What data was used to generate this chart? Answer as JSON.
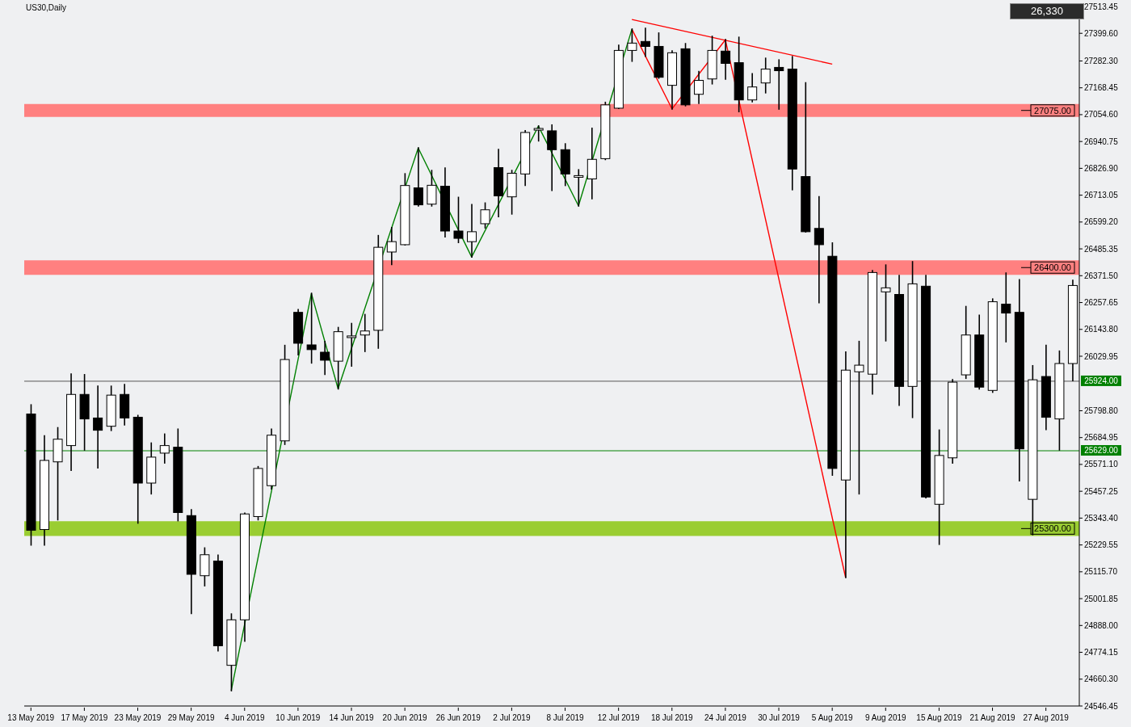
{
  "chart_data": {
    "type": "candlestick",
    "title": "US30,Daily",
    "annotations": [
      "26,330"
    ],
    "categories": [
      "13 May 2019",
      null,
      null,
      null,
      "17 May 2019",
      null,
      null,
      null,
      "23 May 2019",
      null,
      null,
      null,
      "29 May 2019",
      null,
      null,
      null,
      "4 Jun 2019",
      null,
      null,
      null,
      "10 Jun 2019",
      null,
      null,
      null,
      "14 Jun 2019",
      null,
      null,
      null,
      "20 Jun 2019",
      null,
      null,
      null,
      "26 Jun 2019",
      null,
      null,
      null,
      "2 Jul 2019",
      null,
      null,
      null,
      "8 Jul 2019",
      null,
      null,
      null,
      "12 Jul 2019",
      null,
      null,
      null,
      "18 Jul 2019",
      null,
      null,
      null,
      "24 Jul 2019",
      null,
      null,
      null,
      "30 Jul 2019",
      null,
      null,
      null,
      "5 Aug 2019",
      null,
      null,
      null,
      "9 Aug 2019",
      null,
      null,
      null,
      "15 Aug 2019",
      null,
      null,
      null,
      "21 Aug 2019",
      null,
      null,
      null,
      "27 Aug 2019",
      null,
      null
    ],
    "color": "#000000",
    "ohlc": [
      [
        25785,
        25823,
        25230,
        25292
      ],
      [
        25295,
        25692,
        25230,
        25588
      ],
      [
        25582,
        25726,
        25337,
        25678
      ],
      [
        25651,
        25954,
        25547,
        25868
      ],
      [
        25868,
        25951,
        25633,
        25764
      ],
      [
        25768,
        25902,
        25557,
        25716
      ],
      [
        25733,
        25902,
        25716,
        25865
      ],
      [
        25868,
        25909,
        25740,
        25768
      ],
      [
        25771,
        25778,
        25323,
        25492
      ],
      [
        25492,
        25661,
        25447,
        25602
      ],
      [
        25619,
        25699,
        25578,
        25651
      ],
      [
        25644,
        25720,
        25333,
        25367
      ],
      [
        25354,
        25378,
        24940,
        25105
      ],
      [
        25099,
        25216,
        25057,
        25188
      ],
      [
        25161,
        25185,
        24781,
        24802
      ],
      [
        24719,
        24936,
        24612,
        24912
      ],
      [
        24912,
        25364,
        24822,
        25361
      ],
      [
        25350,
        25561,
        25337,
        25554
      ],
      [
        25481,
        25720,
        25468,
        25695
      ],
      [
        25671,
        26075,
        25657,
        26016
      ],
      [
        26216,
        26227,
        26037,
        26085
      ],
      [
        26078,
        26296,
        26002,
        26058
      ],
      [
        26047,
        26092,
        25954,
        26013
      ],
      [
        26009,
        26151,
        25892,
        26134
      ],
      [
        26109,
        26168,
        25989,
        26116
      ],
      [
        26120,
        26206,
        26051,
        26137
      ],
      [
        26140,
        26541,
        26065,
        26492
      ],
      [
        26472,
        26575,
        26420,
        26516
      ],
      [
        26503,
        26803,
        26503,
        26754
      ],
      [
        26744,
        26913,
        26668,
        26672
      ],
      [
        26675,
        26817,
        26668,
        26755
      ],
      [
        26751,
        26827,
        26537,
        26561
      ],
      [
        26561,
        26703,
        26513,
        26530
      ],
      [
        26516,
        26672,
        26451,
        26558
      ],
      [
        26592,
        26679,
        26575,
        26651
      ],
      [
        26830,
        26906,
        26623,
        26710
      ],
      [
        26706,
        26817,
        26634,
        26806
      ],
      [
        26803,
        26986,
        26755,
        26979
      ],
      [
        26989,
        27006,
        26944,
        26996
      ],
      [
        26986,
        27010,
        26734,
        26906
      ],
      [
        26906,
        26930,
        26755,
        26803
      ],
      [
        26789,
        26820,
        26668,
        26796
      ],
      [
        26782,
        26996,
        26699,
        26865
      ],
      [
        26868,
        27106,
        26865,
        27096
      ],
      [
        27082,
        27348,
        27082,
        27327
      ],
      [
        27327,
        27417,
        27282,
        27358
      ],
      [
        27365,
        27420,
        27303,
        27344
      ],
      [
        27344,
        27400,
        27210,
        27213
      ],
      [
        27179,
        27324,
        27079,
        27317
      ],
      [
        27334,
        27355,
        27093,
        27096
      ],
      [
        27141,
        27237,
        27103,
        27200
      ],
      [
        27206,
        27386,
        27186,
        27327
      ],
      [
        27324,
        27372,
        27206,
        27272
      ],
      [
        27275,
        27382,
        27068,
        27117
      ],
      [
        27117,
        27227,
        27110,
        27172
      ],
      [
        27189,
        27293,
        27148,
        27248
      ],
      [
        27255,
        27286,
        27079,
        27241
      ],
      [
        27248,
        27300,
        26737,
        26824
      ],
      [
        26792,
        27189,
        26558,
        26558
      ],
      [
        26572,
        26706,
        26258,
        26503
      ],
      [
        26454,
        26510,
        25526,
        25554
      ],
      [
        25505,
        26047,
        25092,
        25971
      ],
      [
        25964,
        26092,
        25447,
        25992
      ],
      [
        25954,
        26392,
        25871,
        26385
      ],
      [
        26303,
        26416,
        26096,
        26320
      ],
      [
        26292,
        26372,
        25823,
        25902
      ],
      [
        25902,
        26430,
        25771,
        26337
      ],
      [
        26327,
        26372,
        25430,
        25433
      ],
      [
        25402,
        25716,
        25233,
        25609
      ],
      [
        25599,
        25930,
        25578,
        25920
      ],
      [
        25951,
        26240,
        25937,
        26120
      ],
      [
        26120,
        26203,
        25892,
        25899
      ],
      [
        25885,
        26272,
        25878,
        26261
      ],
      [
        26251,
        26382,
        26092,
        26213
      ],
      [
        26216,
        26354,
        25502,
        25637
      ],
      [
        25423,
        25989,
        25274,
        25930
      ],
      [
        25944,
        26075,
        25720,
        25771
      ],
      [
        25764,
        26051,
        25633,
        25999
      ],
      [
        25999,
        26351,
        25927,
        26330
      ]
    ],
    "series": [
      {
        "type": "line",
        "color": "#008000",
        "values": [
          null,
          null,
          null,
          null,
          null,
          null,
          null,
          null,
          null,
          null,
          null,
          null,
          null,
          null,
          null,
          24612,
          null,
          null,
          null,
          null,
          null,
          26296,
          null,
          25892,
          null,
          null,
          null,
          null,
          null,
          26913,
          null,
          null,
          null,
          26451,
          null,
          null,
          null,
          null,
          27006,
          null,
          null,
          26668,
          null,
          null,
          null,
          27417,
          null,
          null,
          null,
          null,
          null,
          null,
          null,
          null,
          null,
          null,
          null,
          null,
          null,
          null,
          null,
          null,
          null,
          null,
          null,
          null,
          null,
          null,
          null,
          null,
          null,
          null,
          null,
          null,
          null,
          null,
          null,
          null,
          null
        ]
      },
      {
        "type": "line",
        "color": "#ff0000",
        "values": [
          null,
          null,
          null,
          null,
          null,
          null,
          null,
          null,
          null,
          null,
          null,
          null,
          null,
          null,
          null,
          null,
          null,
          null,
          null,
          null,
          null,
          null,
          null,
          null,
          null,
          null,
          null,
          null,
          null,
          null,
          null,
          null,
          null,
          null,
          null,
          null,
          null,
          null,
          null,
          null,
          null,
          null,
          null,
          null,
          null,
          27417,
          null,
          null,
          27079,
          null,
          null,
          null,
          27372,
          null,
          null,
          null,
          null,
          null,
          null,
          null,
          null,
          25092,
          null,
          null,
          null,
          null,
          null,
          null,
          null,
          null,
          null,
          null,
          null,
          null,
          null,
          null,
          null,
          null,
          null
        ]
      },
      {
        "type": "line",
        "color": "#ff0000",
        "values": [
          null,
          null,
          null,
          null,
          null,
          null,
          null,
          null,
          null,
          null,
          null,
          null,
          null,
          null,
          null,
          null,
          null,
          null,
          null,
          null,
          null,
          null,
          null,
          null,
          null,
          null,
          null,
          null,
          null,
          null,
          null,
          null,
          null,
          null,
          null,
          null,
          null,
          null,
          null,
          null,
          null,
          null,
          null,
          null,
          null,
          27458,
          null,
          null,
          null,
          null,
          null,
          null,
          null,
          null,
          null,
          null,
          null,
          null,
          null,
          null,
          27269,
          null,
          null,
          null,
          null,
          null,
          null,
          null,
          null,
          null,
          null,
          null,
          null,
          null,
          null,
          null,
          null,
          null,
          null
        ]
      }
    ],
    "ylim": [
      24546.45,
      27513.45
    ],
    "yticks": [
      {
        "value": 24546.45,
        "label": "24546.45"
      },
      {
        "value": 24660.3,
        "label": "24660.30"
      },
      {
        "value": 24774.15,
        "label": "24774.15"
      },
      {
        "value": 24888,
        "label": "24888.00"
      },
      {
        "value": 25001.85,
        "label": "25001.85"
      },
      {
        "value": 25115.7,
        "label": "25115.70"
      },
      {
        "value": 25229.55,
        "label": "25229.55"
      },
      {
        "value": 25343.4,
        "label": "25343.40"
      },
      {
        "value": 25457.25,
        "label": "25457.25"
      },
      {
        "value": 25571.1,
        "label": "25571.10"
      },
      {
        "value": 25684.95,
        "label": "25684.95"
      },
      {
        "value": 25798.8,
        "label": "25798.80"
      },
      {
        "value": 26029.95,
        "label": "26029.95"
      },
      {
        "value": 26143.8,
        "label": "26143.80"
      },
      {
        "value": 26257.65,
        "label": "26257.65"
      },
      {
        "value": 26371.5,
        "label": "26371.50"
      },
      {
        "value": 26485.35,
        "label": "26485.35"
      },
      {
        "value": 26599.2,
        "label": "26599.20"
      },
      {
        "value": 26713.05,
        "label": "26713.05"
      },
      {
        "value": 26826.9,
        "label": "26826.90"
      },
      {
        "value": 26940.75,
        "label": "26940.75"
      },
      {
        "value": 27054.6,
        "label": "27054.60"
      },
      {
        "value": 27168.45,
        "label": "27168.45"
      },
      {
        "value": 27282.3,
        "label": "27282.30"
      },
      {
        "value": 27399.6,
        "label": "27399.60"
      },
      {
        "value": 27513.45,
        "label": "27513.45"
      }
    ],
    "ref_lines": [
      {
        "axis": "y",
        "value": 25924,
        "label": "25924.00",
        "color": "#555555"
      },
      {
        "axis": "y",
        "value": 25629,
        "label": "25629.00",
        "color": "#008000"
      }
    ],
    "bands": [
      {
        "axis": "y",
        "from": 27045,
        "to": 27100,
        "label": "27075.00",
        "color": "#ff8080"
      },
      {
        "axis": "y",
        "from": 26375,
        "to": 26437,
        "label": "26400.00",
        "color": "#ff8080"
      },
      {
        "axis": "y",
        "from": 25268,
        "to": 25330,
        "label": "25300.00",
        "color": "#9acd32"
      }
    ],
    "tick_labels": true
  }
}
